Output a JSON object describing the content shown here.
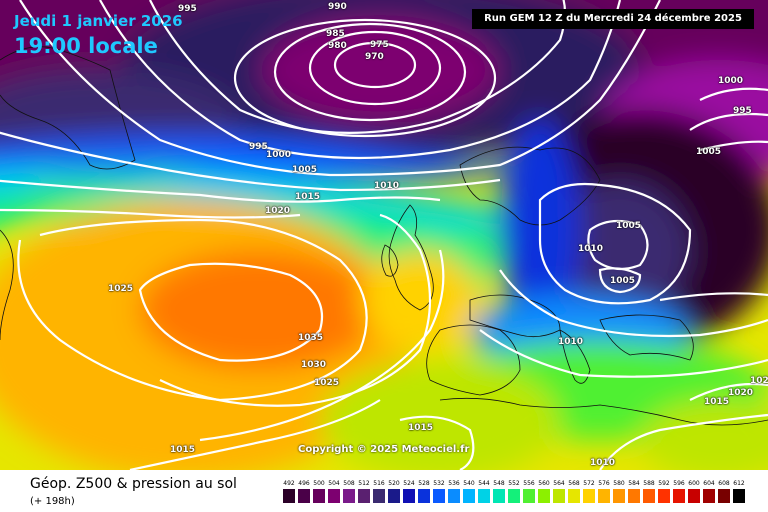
{
  "header": {
    "date": "Jeudi 1 janvier 2026",
    "local_time": "19:00 locale",
    "run": "Run GEM 12 Z du Mercredi 24 décembre 2025"
  },
  "copyright": "Copyright © 2025 Meteociel.fr",
  "footer": {
    "title": "Géop. Z500 & pression au sol",
    "subtitle": "(+ 198h)"
  },
  "colorscale": {
    "labels": [
      "492",
      "496",
      "500",
      "504",
      "508",
      "512",
      "516",
      "520",
      "524",
      "528",
      "532",
      "536",
      "540",
      "544",
      "548",
      "552",
      "556",
      "560",
      "564",
      "568",
      "572",
      "576",
      "580",
      "584",
      "588",
      "592",
      "596",
      "600",
      "604",
      "608",
      "612"
    ],
    "colors": [
      "#2b0028",
      "#4a0048",
      "#66005c",
      "#7d0070",
      "#7a1a8a",
      "#5a2070",
      "#3a2a70",
      "#1a1a8a",
      "#1010b4",
      "#0a32dc",
      "#0a5aff",
      "#0a8cff",
      "#00b4ff",
      "#00d2e6",
      "#00e6b4",
      "#14f07a",
      "#50f032",
      "#8cf000",
      "#bee600",
      "#e6e600",
      "#ffd200",
      "#ffb400",
      "#ff9600",
      "#ff7800",
      "#ff5a00",
      "#ff3200",
      "#e61400",
      "#c80000",
      "#a00000",
      "#780000",
      "#000000"
    ]
  },
  "isobars": [
    "995",
    "990",
    "985",
    "980",
    "975",
    "970",
    "1000",
    "995",
    "1000",
    "995",
    "1005",
    "1005",
    "1010",
    "1015",
    "1020",
    "1025",
    "1035",
    "1030",
    "1025",
    "1010",
    "1005",
    "1005",
    "1010",
    "1015",
    "1020",
    "1015",
    "1015",
    "1010",
    "1015",
    "1020",
    "102"
  ]
}
